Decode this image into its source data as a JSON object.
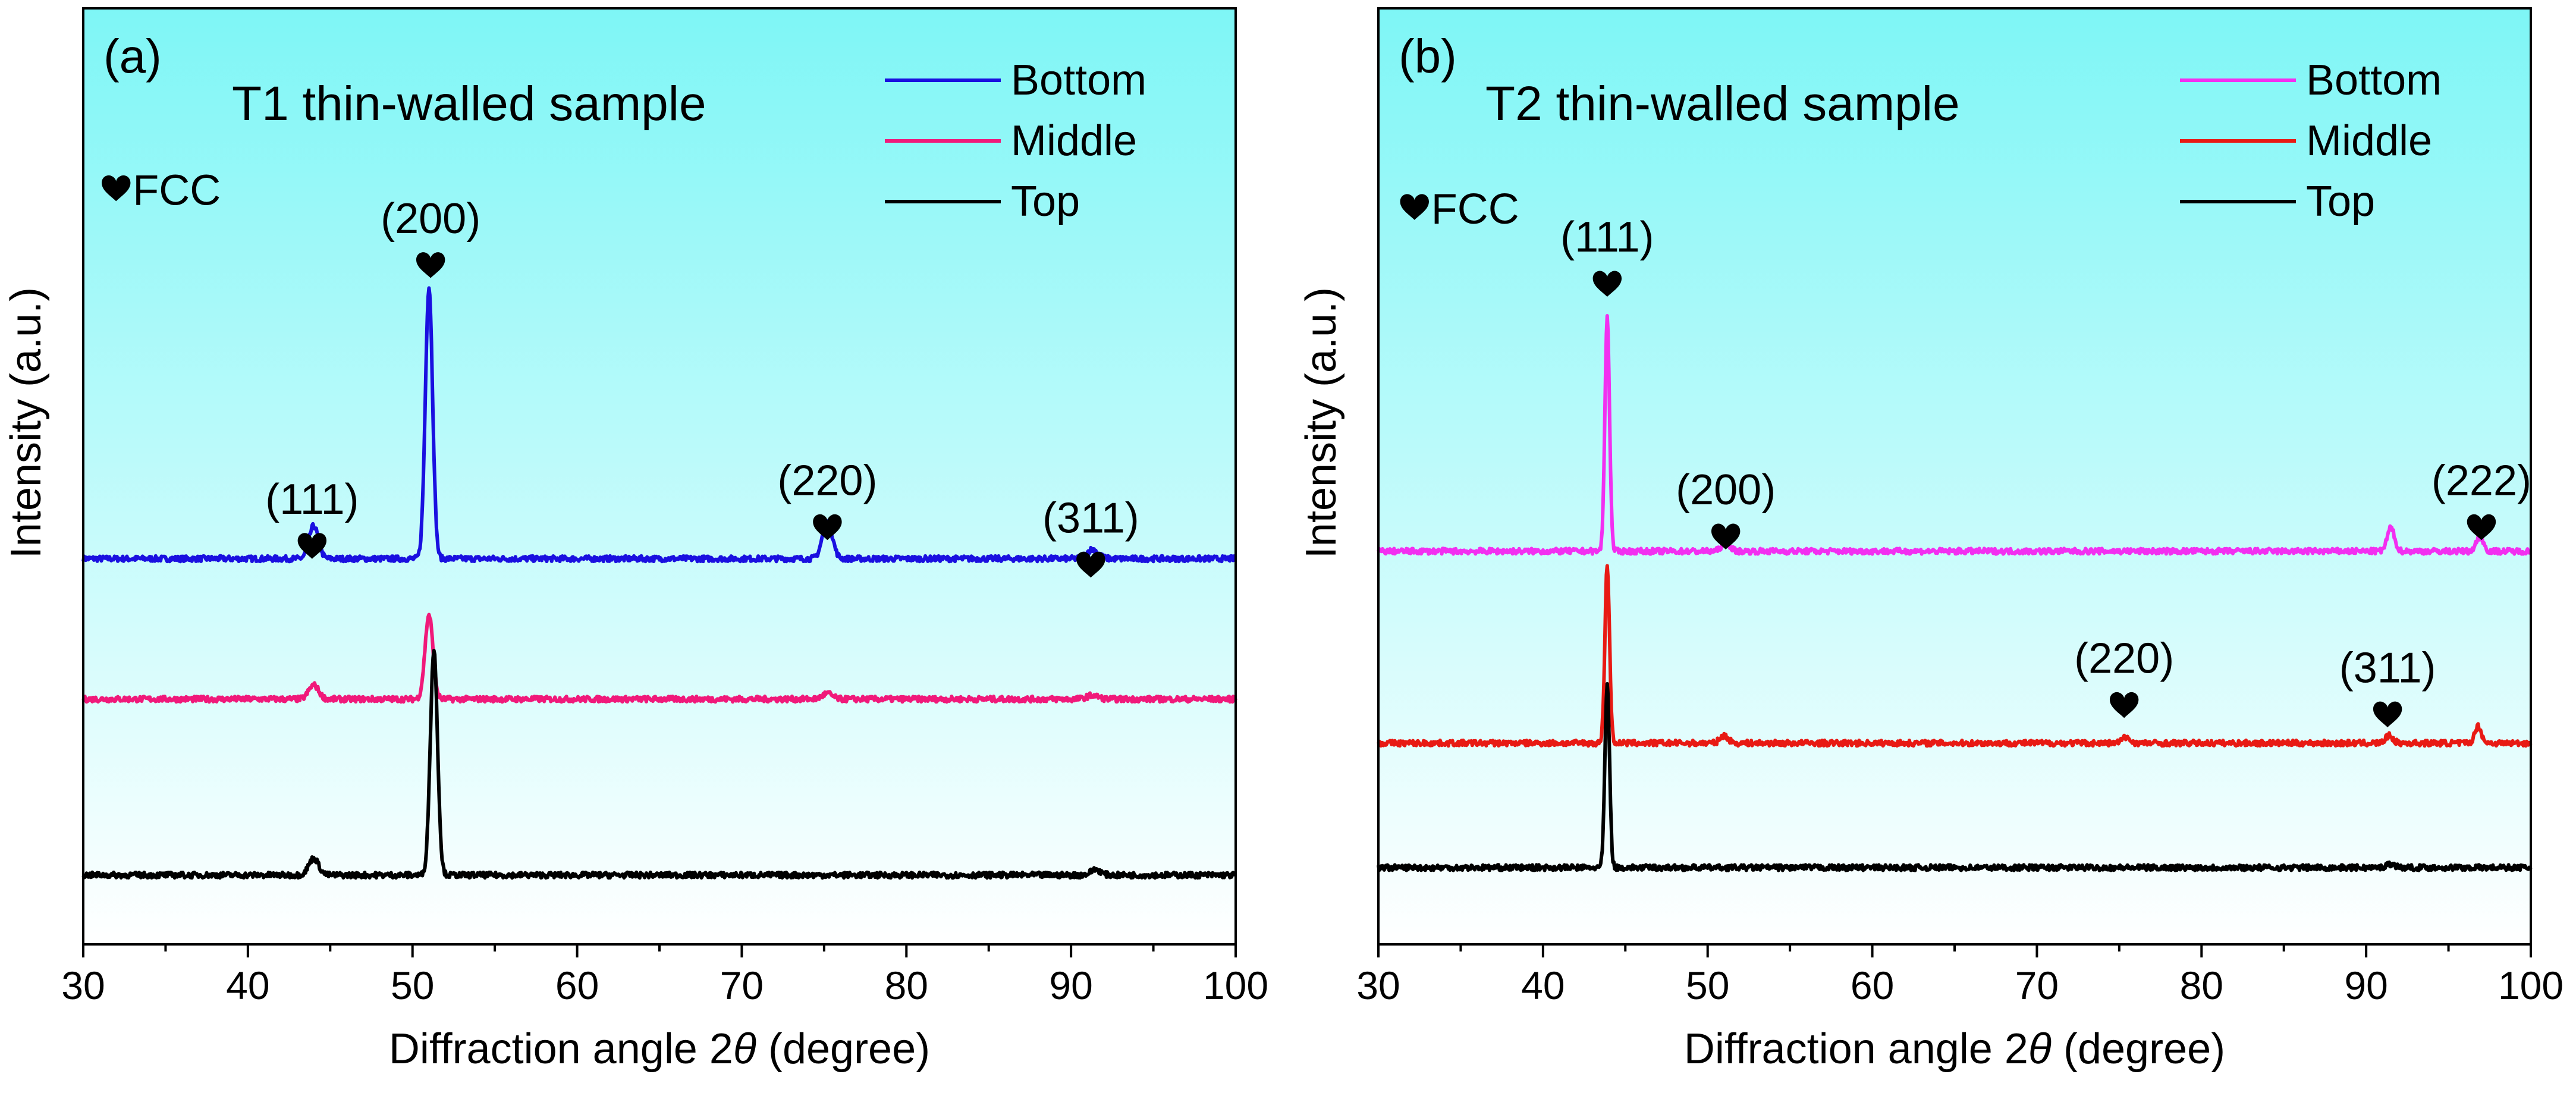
{
  "figure": {
    "background_gradient": [
      "#7ef6f6",
      "#ffffff"
    ],
    "axis_color": "#000000"
  },
  "chart_data": [
    {
      "type": "line",
      "panel_label": "(a)",
      "title": "T1 thin-walled sample",
      "xlabel": "Diffraction angle 2θ (degree)",
      "xlabel_main": "Diffraction angle 2",
      "xlabel_symbol": "θ",
      "xlabel_unit": " (degree)",
      "ylabel": "Intensity (a.u.)",
      "xlim": [
        30,
        100
      ],
      "ylim": [
        0,
        1
      ],
      "x_ticks": [
        30,
        40,
        50,
        60,
        70,
        80,
        90,
        100
      ],
      "x_tick_labels": [
        "30",
        "40",
        "50",
        "60",
        "70",
        "80",
        "90",
        "100"
      ],
      "phase_label": "FCC",
      "phase_marker": "heart-icon",
      "legend_position": "top-right",
      "legend": [
        "Bottom",
        "Middle",
        "Top"
      ],
      "series": [
        {
          "name": "Bottom",
          "color": "#1a10e0",
          "baseline": 0.412,
          "peaks": [
            {
              "x": 44.0,
              "height": 0.035,
              "width": 0.28
            },
            {
              "x": 51.0,
              "height": 0.29,
              "width": 0.22
            },
            {
              "x": 75.2,
              "height": 0.04,
              "width": 0.3
            },
            {
              "x": 91.3,
              "height": 0.01,
              "width": 0.35
            }
          ]
        },
        {
          "name": "Middle",
          "color": "#f0197a",
          "baseline": 0.262,
          "peaks": [
            {
              "x": 44.0,
              "height": 0.015,
              "width": 0.3
            },
            {
              "x": 51.0,
              "height": 0.09,
              "width": 0.24
            },
            {
              "x": 75.2,
              "height": 0.006,
              "width": 0.3
            },
            {
              "x": 91.3,
              "height": 0.004,
              "width": 0.35
            }
          ]
        },
        {
          "name": "Top",
          "color": "#000000",
          "baseline": 0.074,
          "peaks": [
            {
              "x": 44.0,
              "height": 0.018,
              "width": 0.3
            },
            {
              "x": 51.3,
              "height": 0.24,
              "width": 0.22
            },
            {
              "x": 91.5,
              "height": 0.006,
              "width": 0.3
            }
          ]
        }
      ],
      "peak_labels": [
        {
          "text": "(111)",
          "x": 43.9,
          "y": 0.46
        },
        {
          "text": "(200)",
          "x": 51.1,
          "y": 0.76
        },
        {
          "text": "(220)",
          "x": 75.2,
          "y": 0.48
        },
        {
          "text": "(311)",
          "x": 91.2,
          "y": 0.44
        }
      ],
      "fcc_label": {
        "x": 31.2,
        "y": 0.79
      }
    },
    {
      "type": "line",
      "panel_label": "(b)",
      "title": "T2 thin-walled sample",
      "xlabel": "Diffraction angle 2θ (degree)",
      "xlabel_main": "Diffraction angle 2",
      "xlabel_symbol": "θ",
      "xlabel_unit": " (degree)",
      "ylabel": "Intensity (a.u.)",
      "xlim": [
        30,
        100
      ],
      "ylim": [
        0,
        1
      ],
      "x_ticks": [
        30,
        40,
        50,
        60,
        70,
        80,
        90,
        100
      ],
      "x_tick_labels": [
        "30",
        "40",
        "50",
        "60",
        "70",
        "80",
        "90",
        "100"
      ],
      "phase_label": "FCC",
      "phase_marker": "heart-icon",
      "legend_position": "top-right",
      "legend": [
        "Bottom",
        "Middle",
        "Top"
      ],
      "series": [
        {
          "name": "Bottom",
          "color": "#f22ff0",
          "baseline": 0.42,
          "peaks": [
            {
              "x": 43.9,
              "height": 0.25,
              "width": 0.14
            },
            {
              "x": 51.1,
              "height": 0.01,
              "width": 0.25
            },
            {
              "x": 91.5,
              "height": 0.025,
              "width": 0.22
            },
            {
              "x": 96.9,
              "height": 0.015,
              "width": 0.22
            }
          ]
        },
        {
          "name": "Middle",
          "color": "#e81a14",
          "baseline": 0.215,
          "peaks": [
            {
              "x": 43.9,
              "height": 0.19,
              "width": 0.14
            },
            {
              "x": 51.0,
              "height": 0.008,
              "width": 0.25
            },
            {
              "x": 75.4,
              "height": 0.006,
              "width": 0.25
            },
            {
              "x": 91.4,
              "height": 0.008,
              "width": 0.22
            },
            {
              "x": 96.8,
              "height": 0.018,
              "width": 0.2
            }
          ]
        },
        {
          "name": "Top",
          "color": "#000000",
          "baseline": 0.082,
          "peaks": [
            {
              "x": 43.9,
              "height": 0.195,
              "width": 0.14
            },
            {
              "x": 91.5,
              "height": 0.004,
              "width": 0.25
            }
          ]
        }
      ],
      "peak_labels": [
        {
          "text": "(111)",
          "x": 43.9,
          "y": 0.74
        },
        {
          "text": "(200)",
          "x": 51.1,
          "y": 0.47
        },
        {
          "text": "(220)",
          "x": 75.3,
          "y": 0.29
        },
        {
          "text": "(311)",
          "x": 91.3,
          "y": 0.28
        },
        {
          "text": "(222)",
          "x": 97.0,
          "y": 0.48
        }
      ],
      "fcc_label": {
        "x": 31.4,
        "y": 0.77
      }
    }
  ]
}
